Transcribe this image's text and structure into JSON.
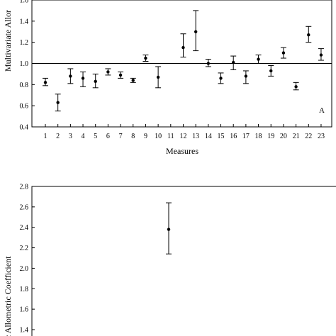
{
  "chart_data": [
    {
      "type": "scatter",
      "panel_label": "A",
      "xlabel": "Measures",
      "ylabel": "Multivariate Allometric Coefficient",
      "ylabel_visible": "Multivariate Allor",
      "ylim": [
        0.4,
        1.6
      ],
      "yticks": [
        "0.4",
        "0.6",
        "0.8",
        "1.0",
        "1.2",
        "1.4",
        "1.6"
      ],
      "reference_line": 1.0,
      "x": [
        1,
        2,
        3,
        4,
        5,
        6,
        7,
        8,
        9,
        10,
        11,
        12,
        13,
        14,
        15,
        16,
        17,
        18,
        19,
        20,
        21,
        22,
        23
      ],
      "xticks": [
        "1",
        "2",
        "3",
        "4",
        "5",
        "6",
        "7",
        "8",
        "9",
        "10",
        "11",
        "12",
        "13",
        "14",
        "15",
        "16",
        "17",
        "18",
        "19",
        "20",
        "21",
        "22",
        "23"
      ],
      "y": [
        0.82,
        0.63,
        0.88,
        0.86,
        0.83,
        0.92,
        0.89,
        0.84,
        1.05,
        0.87,
        null,
        1.15,
        1.3,
        1.0,
        0.86,
        1.01,
        0.88,
        1.04,
        0.93,
        1.1,
        0.78,
        1.27,
        1.08
      ],
      "y_low": [
        0.79,
        0.55,
        0.81,
        0.78,
        0.77,
        0.89,
        0.86,
        0.82,
        1.02,
        0.77,
        null,
        1.06,
        1.12,
        0.97,
        0.81,
        0.94,
        0.81,
        1.0,
        0.88,
        1.05,
        0.75,
        1.2,
        1.03
      ],
      "y_high": [
        0.86,
        0.71,
        0.95,
        0.92,
        0.9,
        0.95,
        0.92,
        0.86,
        1.08,
        0.97,
        null,
        1.28,
        1.5,
        1.04,
        0.91,
        1.07,
        0.93,
        1.08,
        0.98,
        1.15,
        0.82,
        1.35,
        1.14
      ]
    },
    {
      "type": "scatter",
      "ylabel_visible": "c Allometric Coefficient",
      "ylim": [
        1.4,
        2.8
      ],
      "yticks": [
        "1.4",
        "1.6",
        "1.8",
        "2.0",
        "2.2",
        "2.4",
        "2.6",
        "2.8"
      ],
      "points": [
        {
          "y": 2.38,
          "y_low": 2.14,
          "y_high": 2.64
        }
      ]
    }
  ]
}
